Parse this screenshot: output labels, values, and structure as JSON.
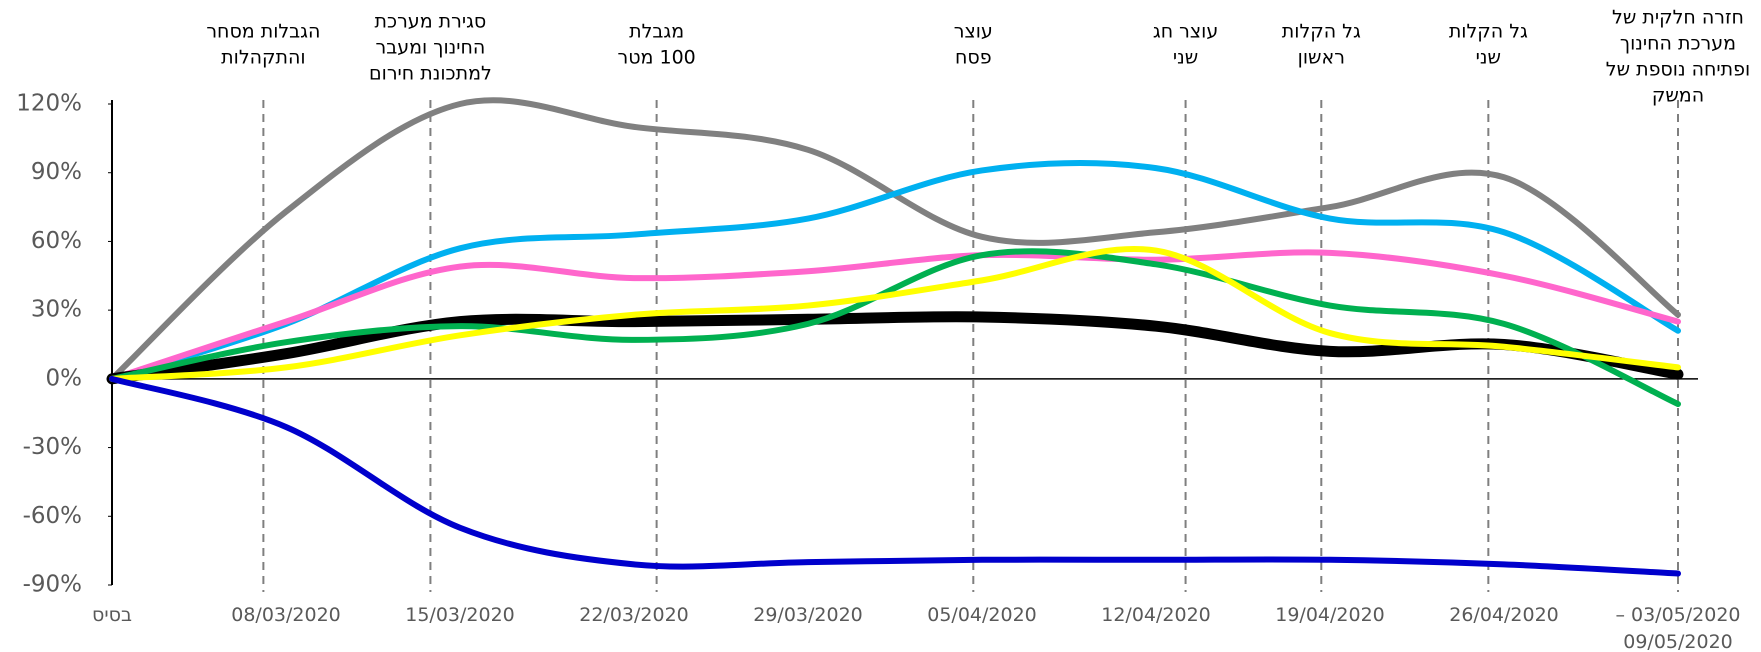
{
  "chart_data": {
    "type": "line",
    "categories": [
      "בסיס",
      "08/03/2020",
      "15/03/2020",
      "22/03/2020",
      "29/03/2020",
      "05/04/2020",
      "12/04/2020",
      "19/04/2020",
      "26/04/2020",
      "– 03/05/2020\n09/05/2020"
    ],
    "series": [
      {
        "color": "#808080",
        "values": [
          0,
          73,
          120,
          110,
          100,
          62,
          64,
          75,
          88,
          28
        ]
      },
      {
        "color": "#00b0f0",
        "values": [
          0,
          24,
          57,
          63,
          70,
          91,
          92,
          70,
          64,
          21
        ]
      },
      {
        "color": "#ff66cc",
        "values": [
          0,
          25,
          49,
          44,
          47,
          54,
          52,
          55,
          45,
          25
        ]
      },
      {
        "color": "#000000",
        "values": [
          0,
          11,
          25,
          25,
          26,
          27,
          23,
          12,
          15,
          2
        ]
      },
      {
        "color": "#00b050",
        "values": [
          0,
          16,
          23,
          17,
          24,
          54,
          50,
          32,
          24,
          -11
        ]
      },
      {
        "color": "#ffff00",
        "values": [
          0,
          5,
          19,
          28,
          32,
          43,
          56,
          20,
          14,
          5
        ]
      },
      {
        "color": "#0000cc",
        "values": [
          0,
          -21,
          -65,
          -81,
          -80,
          -79,
          -79,
          -79,
          -81,
          -85
        ]
      }
    ],
    "annotations": [
      [
        "הגבלות מסחר",
        "והתקהלות"
      ],
      [
        "סגירת מערכת",
        "החינוך ומעבר",
        "למתכונת חירום"
      ],
      [
        "מגבלת",
        "100 מטר"
      ],
      [
        "עוצר",
        "פסח"
      ],
      [
        "עוצר חג",
        "שני"
      ],
      [
        "גל הקלות",
        "ראשון"
      ],
      [
        "גל הקלות",
        "שני"
      ],
      [
        "חזרה חלקית של",
        "מערכת החינוך",
        "ופתיחה נוספת של",
        "המשק"
      ]
    ],
    "ylim": [
      -90,
      120
    ],
    "yticks": [
      {
        "value": -90,
        "label": "-90%"
      },
      {
        "value": -60,
        "label": "-60%"
      },
      {
        "value": -30,
        "label": "-30%"
      },
      {
        "value": 0,
        "label": "0%"
      },
      {
        "value": 30,
        "label": "30%"
      },
      {
        "value": 60,
        "label": "60%"
      },
      {
        "value": 90,
        "label": "90%"
      },
      {
        "value": 120,
        "label": "120%"
      }
    ],
    "grid": false
  }
}
